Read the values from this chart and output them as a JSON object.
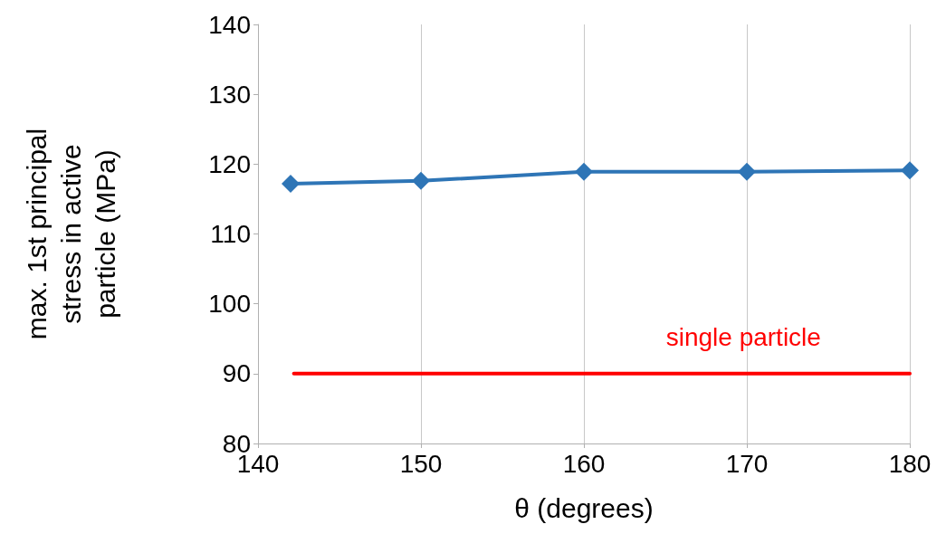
{
  "chart_data": {
    "type": "line",
    "xlabel": "θ (degrees)",
    "ylabel": "max. 1st principal\nstress in active\nparticle (MPa)",
    "xlim": [
      140,
      180
    ],
    "xticks": [
      140,
      150,
      160,
      170,
      180
    ],
    "ylim": [
      80,
      140
    ],
    "yticks": [
      80,
      90,
      100,
      110,
      120,
      130,
      140
    ],
    "grid": "x",
    "marker": "diamond",
    "line_style": "solid",
    "series": [
      {
        "color": "#2e75b6",
        "x": [
          142,
          150,
          160,
          170,
          180
        ],
        "values": [
          117.2,
          117.6,
          118.9,
          118.9,
          119.1
        ]
      },
      {
        "name": "single particle",
        "color": "#ff0000",
        "marker": "none",
        "x": [
          142.2,
          180
        ],
        "values": [
          90,
          90
        ]
      }
    ]
  }
}
